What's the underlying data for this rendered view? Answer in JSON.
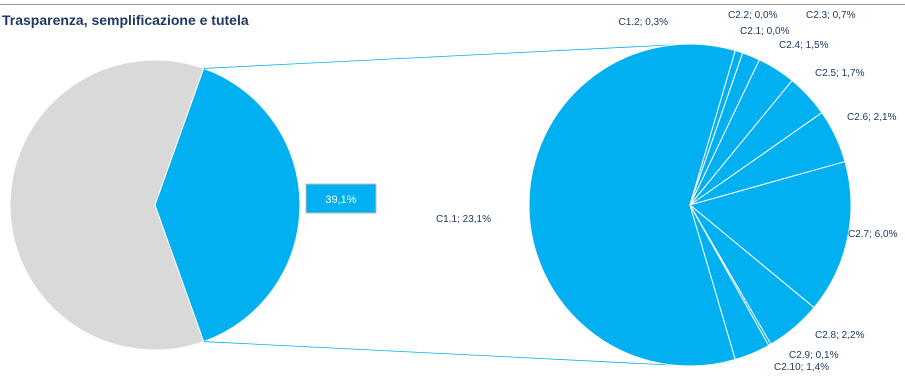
{
  "chart_data": {
    "type": "pie",
    "title": "Trasparenza, semplificazione e tutela",
    "main_pie": {
      "slices": [
        {
          "value": 60.9,
          "color": "#d9d9d9"
        },
        {
          "value": 39.1,
          "color": "#00b0f0"
        }
      ],
      "highlight_label": "39,1%"
    },
    "detail_pie": {
      "slices": [
        {
          "label": "C1.1; 23,1%",
          "value": 23.1
        },
        {
          "label": "C1.2; 0,3%",
          "value": 0.3
        },
        {
          "label": "C2.1; 0,0%",
          "value": 0.0
        },
        {
          "label": "C2.2; 0,0%",
          "value": 0.0
        },
        {
          "label": "C2.3; 0,7%",
          "value": 0.7
        },
        {
          "label": "C2.4; 1,5%",
          "value": 1.5
        },
        {
          "label": "C2.5; 1,7%",
          "value": 1.7
        },
        {
          "label": "C2.6; 2,1%",
          "value": 2.1
        },
        {
          "label": "C2.7; 6,0%",
          "value": 6.0
        },
        {
          "label": "C2.8; 2,2%",
          "value": 2.2
        },
        {
          "label": "C2.9; 0,1%",
          "value": 0.1
        },
        {
          "label": "C2.10; 1,4%",
          "value": 1.4
        }
      ],
      "color": "#00b0f0",
      "edge_color": "#ffffff"
    },
    "label_color": "#1f3864"
  }
}
